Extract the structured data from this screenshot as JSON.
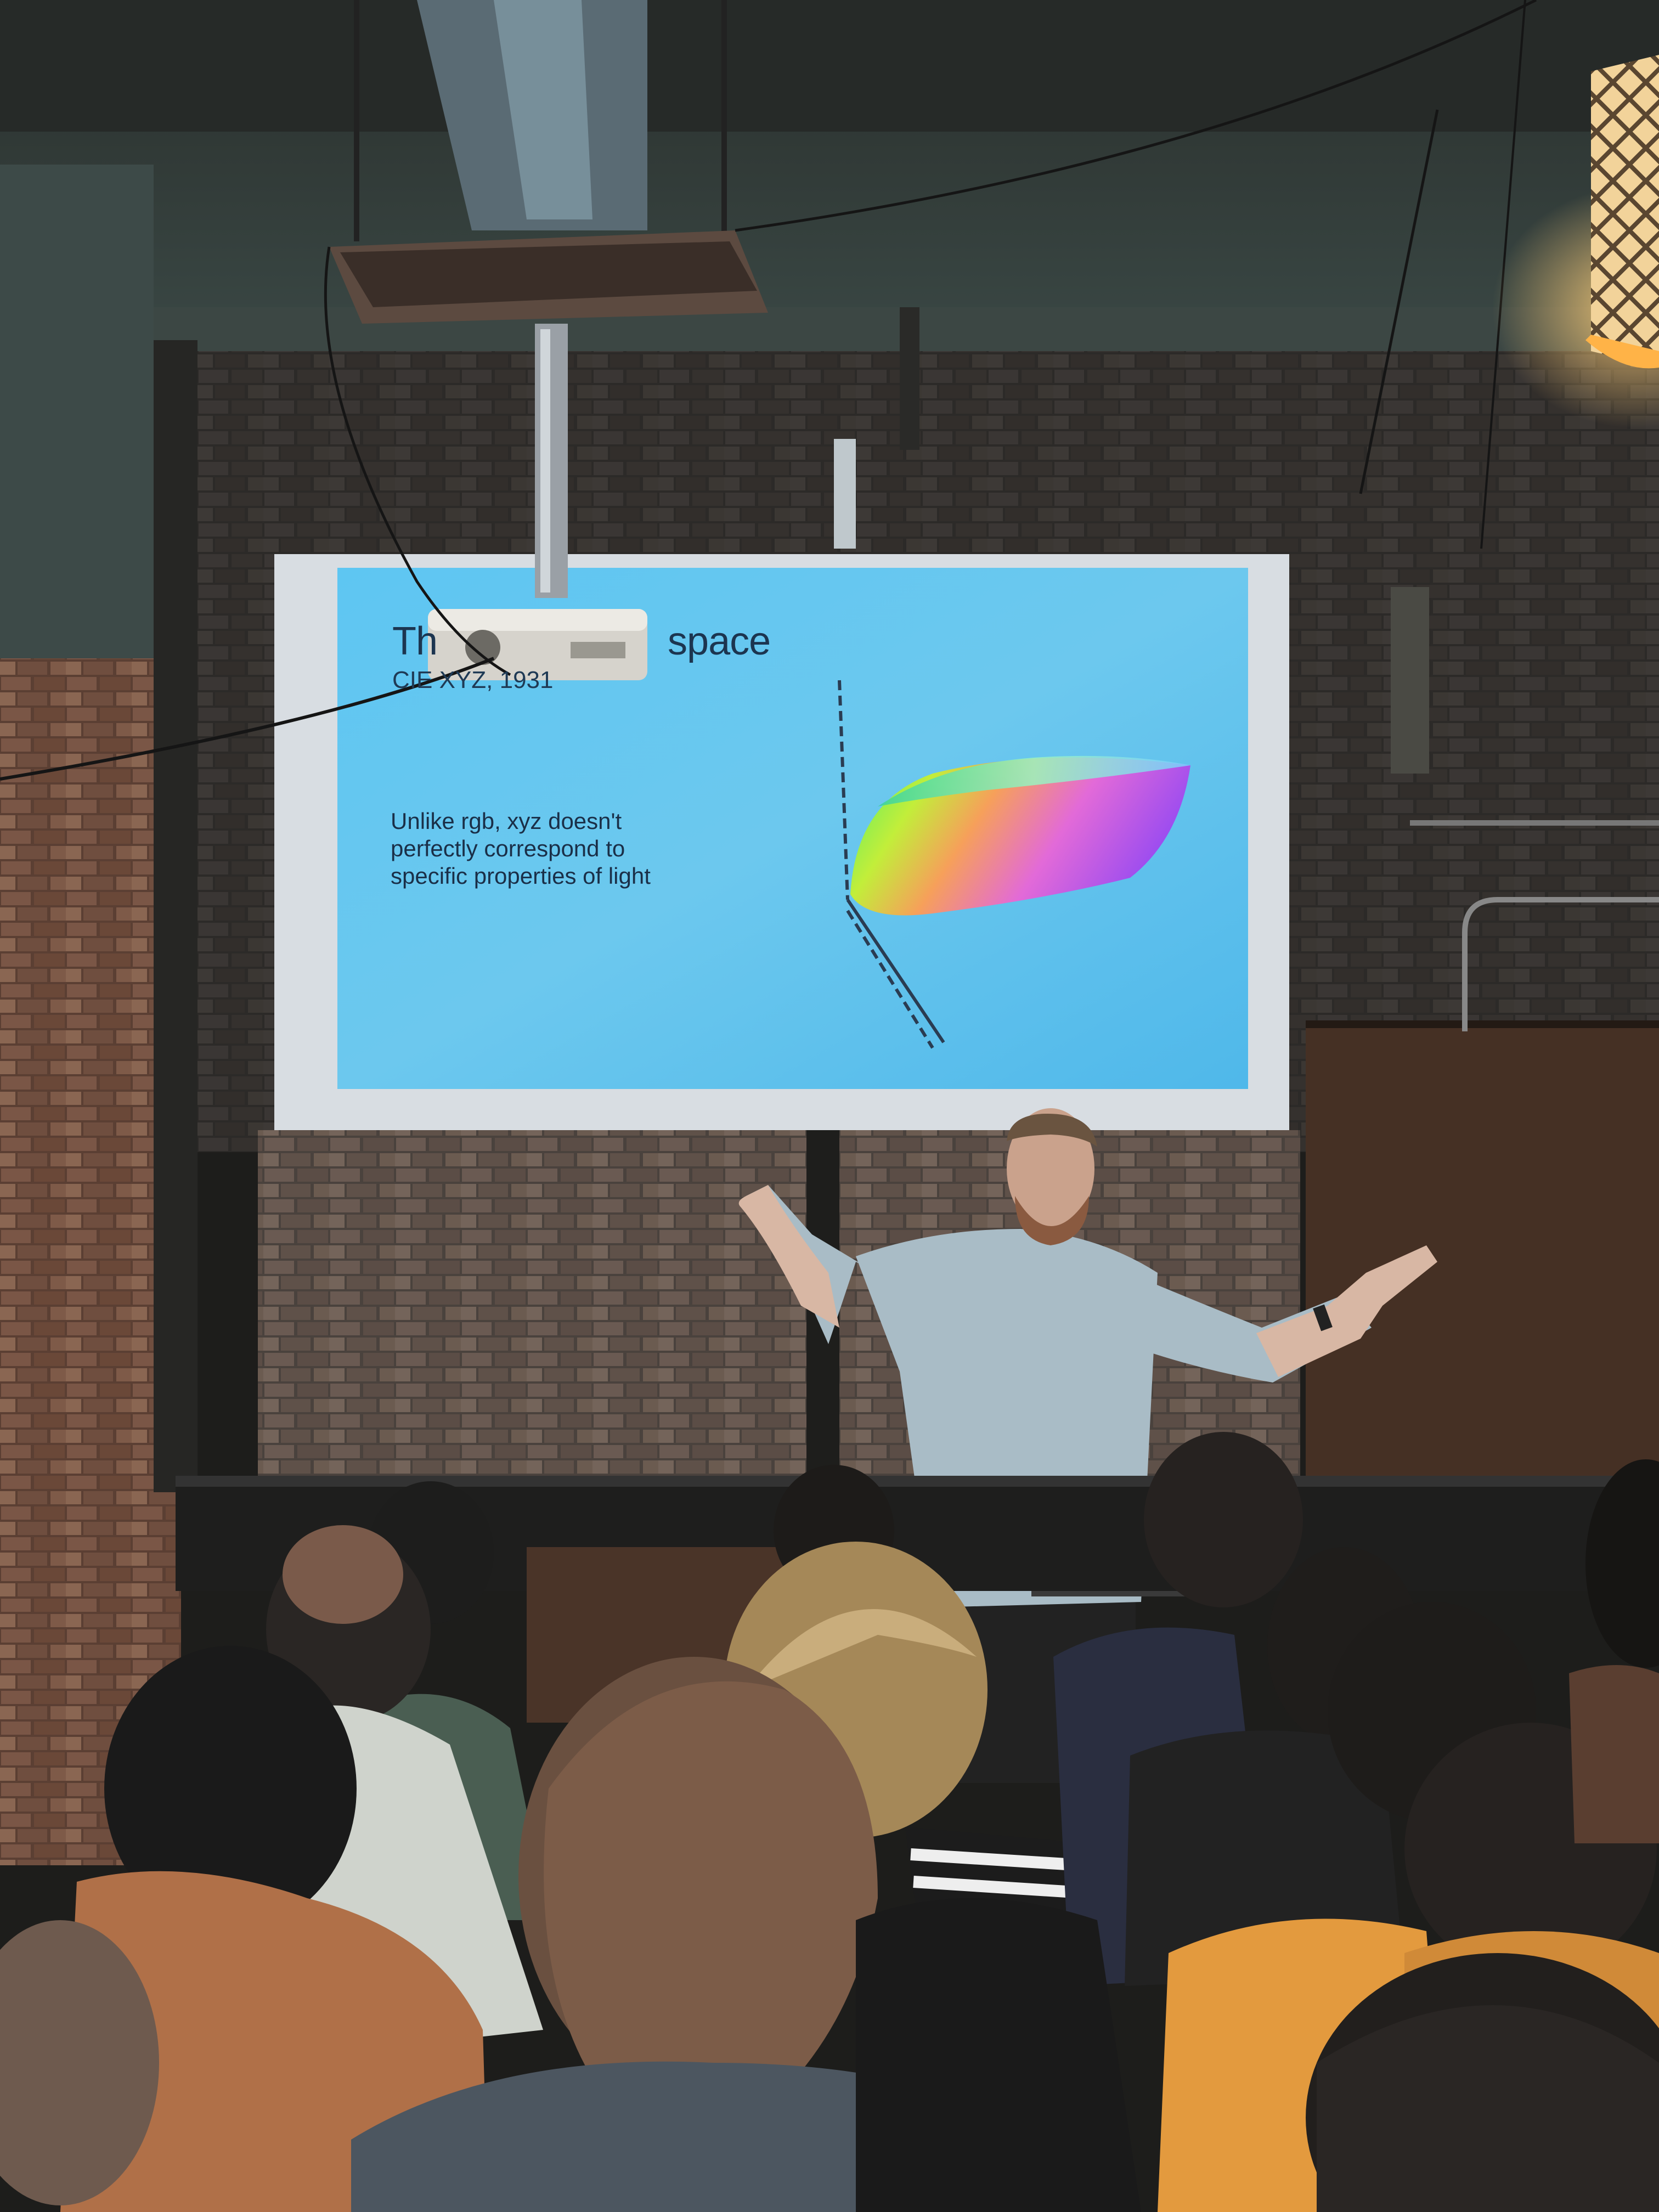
{
  "slide": {
    "title_left": "Th",
    "title_right": "space",
    "subtitle": "CIE XYZ, 1931",
    "body": "Unlike rgb, xyz doesn't\nperfectly correspond to\nspecific properties of light"
  },
  "colors": {
    "screen": "#58c0ef",
    "brick": "#6a4a3a",
    "ceiling": "#2f3836",
    "wood_panel": "#4a3428"
  },
  "scene_objects": [
    "projector",
    "projection-screen",
    "presenter",
    "audience",
    "brick-wall",
    "pendant-lamp",
    "wooden-door"
  ]
}
